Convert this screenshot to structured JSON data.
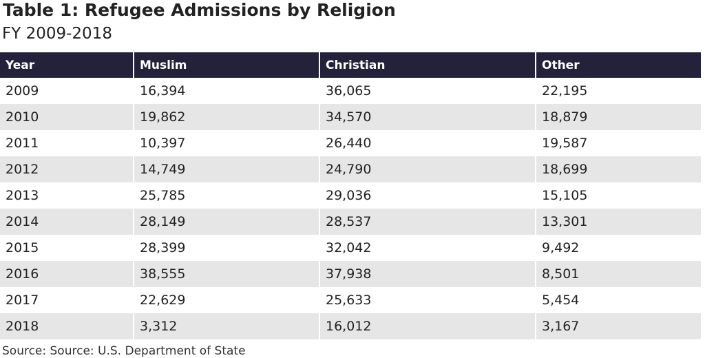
{
  "header": {
    "title": "Table 1: Refugee Admissions by Religion",
    "subtitle": "FY 2009-2018"
  },
  "table": {
    "columns": [
      "Year",
      "Muslim",
      "Christian",
      "Other"
    ],
    "rows": [
      [
        "2009",
        "16,394",
        "36,065",
        "22,195"
      ],
      [
        "2010",
        "19,862",
        "34,570",
        "18,879"
      ],
      [
        "2011",
        "10,397",
        "26,440",
        "19,587"
      ],
      [
        "2012",
        "14,749",
        "24,790",
        "18,699"
      ],
      [
        "2013",
        "25,785",
        "29,036",
        "15,105"
      ],
      [
        "2014",
        "28,149",
        "28,537",
        "13,301"
      ],
      [
        "2015",
        "28,399",
        "32,042",
        "9,492"
      ],
      [
        "2016",
        "38,555",
        "37,938",
        "8,501"
      ],
      [
        "2017",
        "22,629",
        "25,633",
        "5,454"
      ],
      [
        "2018",
        "3,312",
        "16,012",
        "3,167"
      ]
    ]
  },
  "footer": {
    "source": "Source: Source: U.S. Department of State"
  }
}
